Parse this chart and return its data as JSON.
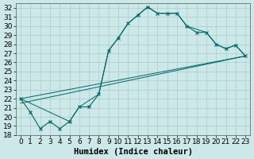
{
  "xlabel": "Humidex (Indice chaleur)",
  "bg_color": "#cce8e8",
  "grid_color": "#aacccc",
  "line_color": "#006666",
  "ylim": [
    18,
    32.5
  ],
  "xlim": [
    -0.5,
    23.5
  ],
  "yticks": [
    18,
    19,
    20,
    21,
    22,
    23,
    24,
    25,
    26,
    27,
    28,
    29,
    30,
    31,
    32
  ],
  "xticks": [
    0,
    1,
    2,
    3,
    4,
    5,
    6,
    7,
    8,
    9,
    10,
    11,
    12,
    13,
    14,
    15,
    16,
    17,
    18,
    19,
    20,
    21,
    22,
    23
  ],
  "xtick_labels": [
    "0",
    "1",
    "2",
    "3",
    "4",
    "5",
    "6",
    "7",
    "8",
    "9",
    "10",
    "11",
    "12",
    "13",
    "14",
    "15",
    "16",
    "17",
    "18",
    "19",
    "20",
    "21",
    "22",
    "23"
  ],
  "series1_x": [
    0,
    1,
    2,
    3,
    4,
    5,
    6,
    7,
    8,
    9,
    10,
    11,
    12,
    13,
    14,
    15,
    16,
    17,
    18,
    19,
    20,
    21,
    22,
    23
  ],
  "series1_y": [
    22.0,
    20.5,
    18.7,
    19.5,
    18.7,
    19.5,
    21.1,
    21.1,
    22.5,
    27.3,
    28.7,
    30.3,
    31.2,
    32.1,
    31.4,
    31.4,
    31.4,
    30.0,
    29.3,
    29.3,
    28.0,
    27.5,
    27.9,
    26.7
  ],
  "series2_x": [
    0,
    5,
    6,
    8,
    9,
    10,
    11,
    13,
    14,
    15,
    16,
    17,
    19,
    20,
    21,
    22,
    23
  ],
  "series2_y": [
    22.0,
    19.5,
    21.1,
    22.5,
    27.3,
    28.7,
    30.3,
    32.1,
    31.4,
    31.4,
    31.4,
    30.0,
    29.3,
    28.0,
    27.5,
    27.9,
    26.7
  ],
  "series3_x": [
    0,
    23
  ],
  "series3_y": [
    22.0,
    26.7
  ],
  "series4_x": [
    0,
    23
  ],
  "series4_y": [
    22.0,
    26.7
  ],
  "font_size": 6.5
}
